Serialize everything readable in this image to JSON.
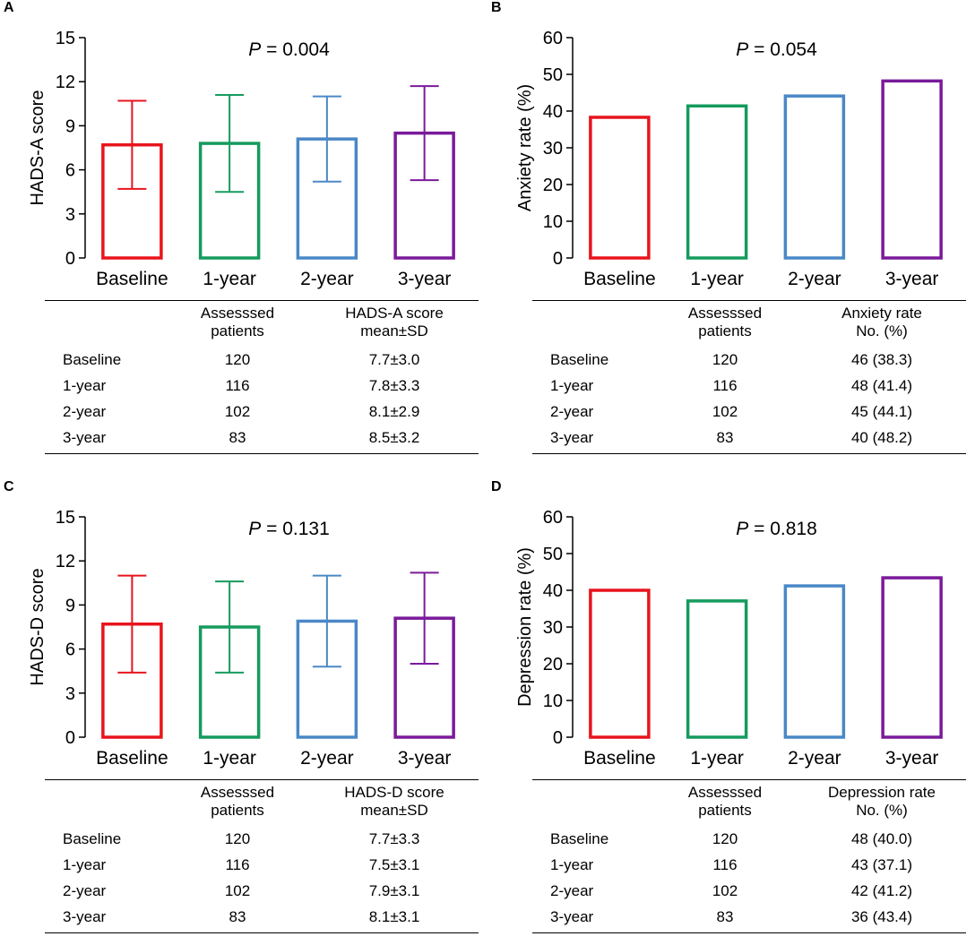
{
  "colors": [
    "#e8141c",
    "#159b5e",
    "#4a88c7",
    "#7a1a9a"
  ],
  "table_headers": {
    "assessed": [
      "Assesssed",
      "patients"
    ]
  },
  "panels": [
    {
      "label": "A",
      "p_italic": "P",
      "p_value": " = 0.004",
      "col3_header": [
        "HADS-A score",
        "mean±SD"
      ],
      "rows": [
        {
          "name": "Baseline",
          "n": "120",
          "value": "7.7±3.0"
        },
        {
          "name": "1-year",
          "n": "116",
          "value": "7.8±3.3"
        },
        {
          "name": "2-year",
          "n": "102",
          "value": "8.1±2.9"
        },
        {
          "name": "3-year",
          "n": "83",
          "value": "8.5±3.2"
        }
      ]
    },
    {
      "label": "B",
      "p_italic": "P",
      "p_value": " = 0.054",
      "col3_header": [
        "Anxiety rate",
        "No. (%)"
      ],
      "rows": [
        {
          "name": "Baseline",
          "n": "120",
          "value": "46 (38.3)"
        },
        {
          "name": "1-year",
          "n": "116",
          "value": "48 (41.4)"
        },
        {
          "name": "2-year",
          "n": "102",
          "value": "45 (44.1)"
        },
        {
          "name": "3-year",
          "n": "83",
          "value": "40 (48.2)"
        }
      ]
    },
    {
      "label": "C",
      "p_italic": "P",
      "p_value": " = 0.131",
      "col3_header": [
        "HADS-D score",
        "mean±SD"
      ],
      "rows": [
        {
          "name": "Baseline",
          "n": "120",
          "value": "7.7±3.3"
        },
        {
          "name": "1-year",
          "n": "116",
          "value": "7.5±3.1"
        },
        {
          "name": "2-year",
          "n": "102",
          "value": "7.9±3.1"
        },
        {
          "name": "3-year",
          "n": "83",
          "value": "8.1±3.1"
        }
      ]
    },
    {
      "label": "D",
      "p_italic": "P",
      "p_value": " = 0.818",
      "col3_header": [
        "Depression rate",
        "No. (%)"
      ],
      "rows": [
        {
          "name": "Baseline",
          "n": "120",
          "value": "48 (40.0)"
        },
        {
          "name": "1-year",
          "n": "116",
          "value": "43 (37.1)"
        },
        {
          "name": "2-year",
          "n": "102",
          "value": "42 (41.2)"
        },
        {
          "name": "3-year",
          "n": "83",
          "value": "36 (43.4)"
        }
      ]
    }
  ],
  "chart_data": [
    {
      "type": "bar",
      "panel": "A",
      "categories": [
        "Baseline",
        "1-year",
        "2-year",
        "3-year"
      ],
      "values": [
        7.7,
        7.8,
        8.1,
        8.5
      ],
      "errors": [
        3.0,
        3.3,
        2.9,
        3.2
      ],
      "ylabel": "HADS-A score",
      "ylim": [
        0,
        15
      ],
      "yticks": [
        "0",
        "3",
        "6",
        "9",
        "12",
        "15"
      ],
      "annotation": "P = 0.004"
    },
    {
      "type": "bar",
      "panel": "B",
      "categories": [
        "Baseline",
        "1-year",
        "2-year",
        "3-year"
      ],
      "values": [
        38.3,
        41.4,
        44.1,
        48.2
      ],
      "ylabel": "Anxiety rate (%)",
      "ylim": [
        0,
        60
      ],
      "yticks": [
        "0",
        "10",
        "20",
        "30",
        "40",
        "50",
        "60"
      ],
      "annotation": "P = 0.054"
    },
    {
      "type": "bar",
      "panel": "C",
      "categories": [
        "Baseline",
        "1-year",
        "2-year",
        "3-year"
      ],
      "values": [
        7.7,
        7.5,
        7.9,
        8.1
      ],
      "errors": [
        3.3,
        3.1,
        3.1,
        3.1
      ],
      "ylabel": "HADS-D score",
      "ylim": [
        0,
        15
      ],
      "yticks": [
        "0",
        "3",
        "6",
        "9",
        "12",
        "15"
      ],
      "annotation": "P = 0.131"
    },
    {
      "type": "bar",
      "panel": "D",
      "categories": [
        "Baseline",
        "1-year",
        "2-year",
        "3-year"
      ],
      "values": [
        40.0,
        37.1,
        41.2,
        43.4
      ],
      "ylabel": "Depression rate (%)",
      "ylim": [
        0,
        60
      ],
      "yticks": [
        "0",
        "10",
        "20",
        "30",
        "40",
        "50",
        "60"
      ],
      "annotation": "P = 0.818"
    }
  ]
}
